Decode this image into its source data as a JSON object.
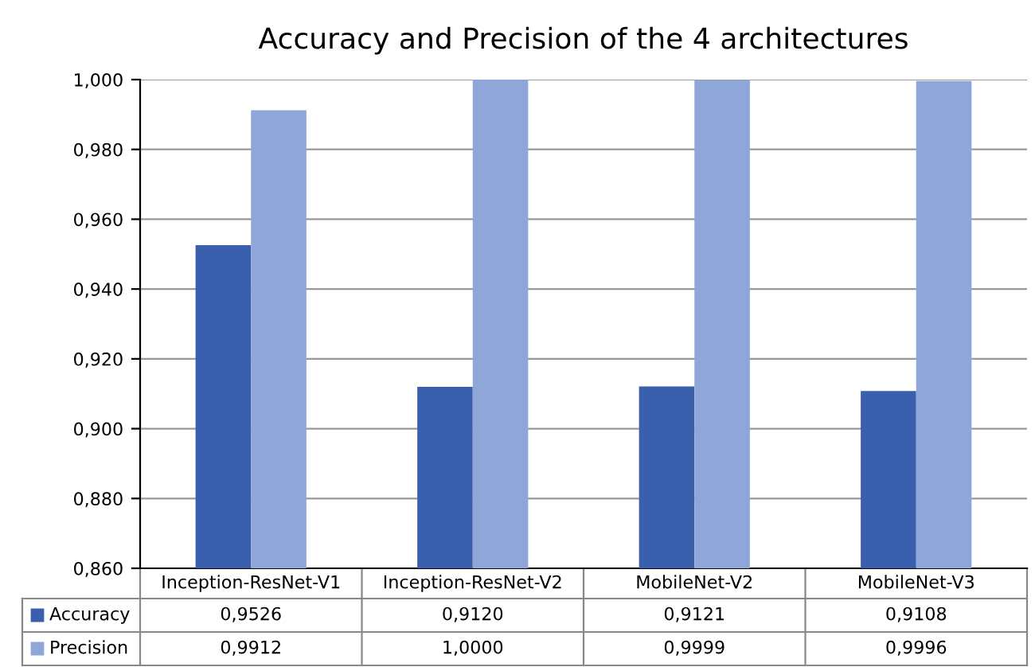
{
  "chart_data": {
    "type": "bar",
    "title": "Accuracy and Precision of the 4 architectures",
    "categories": [
      "Inception-ResNet-V1",
      "Inception-ResNet-V2",
      "MobileNet-V2",
      "MobileNet-V3"
    ],
    "series": [
      {
        "name": "Accuracy",
        "color": "#3a5fad",
        "values": [
          0.9526,
          0.912,
          0.9121,
          0.9108
        ],
        "value_labels": [
          "0,9526",
          "0,9120",
          "0,9121",
          "0,9108"
        ]
      },
      {
        "name": "Precision",
        "color": "#8fa6d8",
        "values": [
          0.9912,
          1.0,
          0.9999,
          0.9996
        ],
        "value_labels": [
          "0,9912",
          "1,0000",
          "0,9999",
          "0,9996"
        ]
      }
    ],
    "ylim": [
      0.86,
      1.0
    ],
    "yticks": [
      {
        "value": 0.86,
        "label": "0,860"
      },
      {
        "value": 0.88,
        "label": "0,880"
      },
      {
        "value": 0.9,
        "label": "0,900"
      },
      {
        "value": 0.92,
        "label": "0,920"
      },
      {
        "value": 0.94,
        "label": "0,940"
      },
      {
        "value": 0.96,
        "label": "0,960"
      },
      {
        "value": 0.98,
        "label": "0,980"
      },
      {
        "value": 1.0,
        "label": "1,000"
      }
    ],
    "grid": "y",
    "legend": "bottom"
  }
}
